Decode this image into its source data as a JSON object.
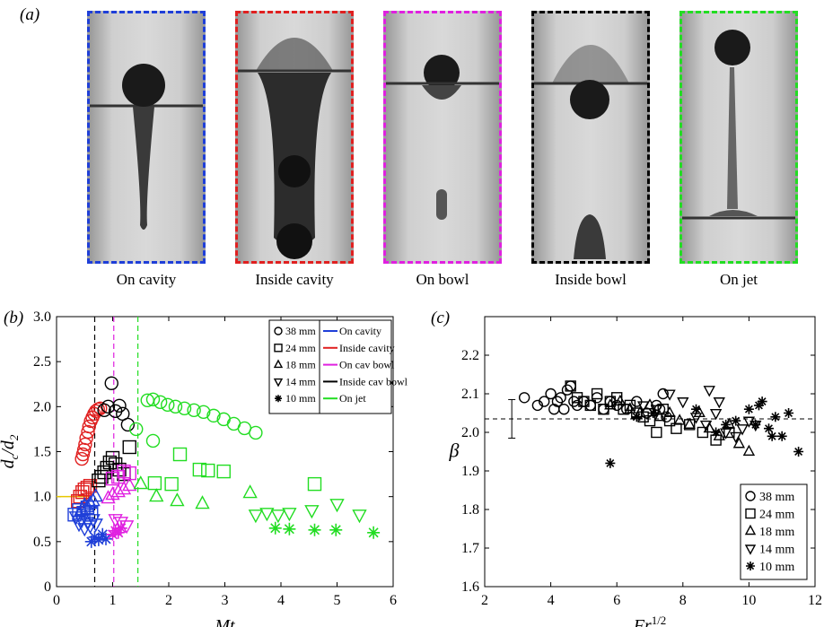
{
  "figure_labels": {
    "a": "(a)",
    "b": "(b)",
    "c": "(c)"
  },
  "photos": [
    {
      "label": "On cavity",
      "color": "#1f3fd8"
    },
    {
      "label": "Inside cavity",
      "color": "#e02020"
    },
    {
      "label": "On bowl",
      "color": "#e020e0"
    },
    {
      "label": "Inside bowl",
      "color": "#000000"
    },
    {
      "label": "On jet",
      "color": "#22dd22"
    }
  ],
  "chart_data": [
    {
      "id": "b",
      "type": "scatter",
      "xlabel": "Mt",
      "ylabel": "d_c/d_2",
      "xlim": [
        0,
        6
      ],
      "ylim": [
        0,
        3
      ],
      "xticks": [
        "0",
        "1",
        "2",
        "3",
        "4",
        "5",
        "6"
      ],
      "yticks": [
        "0",
        "0.5",
        "1.0",
        "1.5",
        "2.0",
        "2.5",
        "3.0"
      ],
      "vlines": [
        {
          "x": 0.68,
          "color": "#000000"
        },
        {
          "x": 1.02,
          "color": "#e020e0"
        },
        {
          "x": 1.45,
          "color": "#22dd22"
        }
      ],
      "hline": {
        "x0": 0.0,
        "x1": 0.6,
        "y": 1.0,
        "color": "#e8c800"
      },
      "legend": {
        "position": "top-right",
        "sizes": [
          {
            "marker": "circle",
            "label": "38 mm"
          },
          {
            "marker": "square",
            "label": "24 mm"
          },
          {
            "marker": "triangle-up",
            "label": "18 mm"
          },
          {
            "marker": "triangle-down",
            "label": "14 mm"
          },
          {
            "marker": "star",
            "label": "10 mm"
          }
        ],
        "regimes": [
          {
            "label": "On cavity",
            "color": "#1f3fd8"
          },
          {
            "label": "Inside cavity",
            "color": "#e02020"
          },
          {
            "label": "On cav bowl",
            "color": "#e020e0"
          },
          {
            "label": "Inside cav bowl",
            "color": "#000000"
          },
          {
            "label": "On jet",
            "color": "#22dd22"
          }
        ]
      },
      "series": [
        {
          "marker": "circle",
          "color": "#e02020",
          "x": [
            0.45,
            0.47,
            0.49,
            0.51,
            0.53,
            0.56,
            0.58,
            0.61,
            0.64,
            0.67,
            0.7,
            0.74,
            0.78
          ],
          "y": [
            1.42,
            1.47,
            1.52,
            1.58,
            1.65,
            1.72,
            1.78,
            1.84,
            1.88,
            1.92,
            1.95,
            1.97,
            1.98
          ]
        },
        {
          "marker": "circle",
          "color": "#000000",
          "x": [
            0.85,
            0.92,
            0.98,
            1.05,
            1.12,
            1.18,
            1.27
          ],
          "y": [
            1.96,
            2.0,
            2.26,
            1.95,
            2.01,
            1.92,
            1.8
          ]
        },
        {
          "marker": "circle",
          "color": "#22dd22",
          "x": [
            1.62,
            1.72,
            1.85,
            1.98,
            2.12,
            2.28,
            2.45,
            2.62,
            2.8,
            2.98,
            3.16,
            3.35,
            3.55,
            1.42,
            1.72
          ],
          "y": [
            2.07,
            2.08,
            2.05,
            2.02,
            2.0,
            1.98,
            1.96,
            1.94,
            1.9,
            1.86,
            1.81,
            1.76,
            1.71,
            1.75,
            1.62
          ]
        },
        {
          "marker": "square",
          "color": "#e02020",
          "x": [
            0.38,
            0.42,
            0.46,
            0.5,
            0.55,
            0.6
          ],
          "y": [
            0.95,
            1.0,
            1.05,
            1.08,
            1.1,
            1.12
          ]
        },
        {
          "marker": "square",
          "color": "#000000",
          "x": [
            0.75,
            0.8,
            0.85,
            0.9,
            0.95,
            1.0,
            1.05,
            1.12,
            1.2,
            1.3
          ],
          "y": [
            1.18,
            1.22,
            1.27,
            1.32,
            1.38,
            1.43,
            1.36,
            1.3,
            1.25,
            1.55
          ]
        },
        {
          "marker": "square",
          "color": "#e020e0",
          "x": [
            1.0,
            1.1,
            1.2,
            1.3
          ],
          "y": [
            1.2,
            1.22,
            1.28,
            1.26
          ]
        },
        {
          "marker": "square",
          "color": "#22dd22",
          "x": [
            1.75,
            2.05,
            2.2,
            2.55,
            2.7,
            2.98,
            4.6
          ],
          "y": [
            1.15,
            1.14,
            1.47,
            1.3,
            1.29,
            1.28,
            1.14
          ]
        },
        {
          "marker": "square",
          "color": "#1f3fd8",
          "x": [
            0.32,
            0.4,
            0.48,
            0.55,
            0.62
          ],
          "y": [
            0.8,
            0.85,
            0.82,
            0.88,
            0.82
          ]
        },
        {
          "marker": "triangle-up",
          "color": "#1f3fd8",
          "x": [
            0.4,
            0.45,
            0.5,
            0.55,
            0.6,
            0.65,
            0.7
          ],
          "y": [
            0.8,
            0.85,
            0.9,
            0.88,
            0.92,
            0.95,
            1.0
          ]
        },
        {
          "marker": "triangle-up",
          "color": "#e020e0",
          "x": [
            0.92,
            1.0,
            1.1,
            1.2,
            1.3
          ],
          "y": [
            0.98,
            1.02,
            1.05,
            1.08,
            1.12
          ]
        },
        {
          "marker": "triangle-up",
          "color": "#22dd22",
          "x": [
            1.5,
            1.78,
            2.15,
            2.6,
            3.45
          ],
          "y": [
            1.14,
            1.0,
            0.95,
            0.92,
            1.04
          ]
        },
        {
          "marker": "triangle-down",
          "color": "#1f3fd8",
          "x": [
            0.35,
            0.4,
            0.45,
            0.5,
            0.55,
            0.6,
            0.65,
            0.7
          ],
          "y": [
            0.78,
            0.7,
            0.74,
            0.65,
            0.72,
            0.68,
            0.75,
            0.7
          ]
        },
        {
          "marker": "triangle-down",
          "color": "#e020e0",
          "x": [
            1.05,
            1.15,
            1.25
          ],
          "y": [
            0.75,
            0.72,
            0.68
          ]
        },
        {
          "marker": "triangle-down",
          "color": "#22dd22",
          "x": [
            3.55,
            3.75,
            3.95,
            4.15,
            4.55,
            5.0,
            5.4
          ],
          "y": [
            0.8,
            0.82,
            0.8,
            0.82,
            0.85,
            0.92,
            0.8
          ]
        },
        {
          "marker": "star",
          "color": "#1f3fd8",
          "x": [
            0.62,
            0.68,
            0.75,
            0.82,
            0.88
          ],
          "y": [
            0.5,
            0.55,
            0.52,
            0.58,
            0.53
          ]
        },
        {
          "marker": "star",
          "color": "#e020e0",
          "x": [
            1.0,
            1.05,
            1.1,
            1.15
          ],
          "y": [
            0.58,
            0.62,
            0.6,
            0.65
          ]
        },
        {
          "marker": "star",
          "color": "#22dd22",
          "x": [
            3.9,
            4.15,
            4.6,
            4.98,
            5.65
          ],
          "y": [
            0.65,
            0.64,
            0.63,
            0.63,
            0.6
          ]
        }
      ]
    },
    {
      "id": "c",
      "type": "scatter",
      "xlabel": "Fr^1/2",
      "ylabel": "β",
      "xlim": [
        2,
        12
      ],
      "ylim": [
        1.6,
        2.3
      ],
      "xticks": [
        "2",
        "4",
        "6",
        "8",
        "10",
        "12"
      ],
      "yticks": [
        "1.6",
        "1.7",
        "1.8",
        "1.9",
        "2.0",
        "2.1",
        "2.2"
      ],
      "mean_line": 2.035,
      "error_bar": {
        "x": 2.82,
        "y": 2.035,
        "ylow": 1.985,
        "yhigh": 2.085
      },
      "legend": {
        "position": "bottom-right",
        "entries": [
          {
            "marker": "circle",
            "label": "38 mm"
          },
          {
            "marker": "square",
            "label": "24 mm"
          },
          {
            "marker": "triangle-up",
            "label": "18 mm"
          },
          {
            "marker": "triangle-down",
            "label": "14 mm"
          },
          {
            "marker": "star",
            "label": "10 mm"
          }
        ]
      },
      "series": [
        {
          "marker": "circle",
          "x": [
            3.2,
            3.6,
            3.8,
            4.0,
            4.1,
            4.2,
            4.3,
            4.4,
            4.5,
            4.6,
            4.7,
            4.8,
            5.0,
            5.2,
            5.4,
            5.6,
            5.8,
            6.0,
            6.3,
            6.6,
            6.9,
            7.2,
            7.3,
            7.4,
            7.5
          ],
          "y": [
            2.09,
            2.07,
            2.08,
            2.1,
            2.06,
            2.08,
            2.09,
            2.06,
            2.11,
            2.12,
            2.08,
            2.07,
            2.08,
            2.07,
            2.09,
            2.06,
            2.08,
            2.07,
            2.06,
            2.08,
            2.05,
            2.07,
            2.06,
            2.1,
            2.04
          ]
        },
        {
          "marker": "square",
          "x": [
            4.6,
            4.8,
            5.0,
            5.2,
            5.4,
            5.6,
            5.8,
            6.0,
            6.2,
            6.4,
            6.6,
            6.8,
            7.0,
            7.2,
            7.4,
            7.6,
            7.8,
            8.2,
            8.6,
            9.0,
            9.4
          ],
          "y": [
            2.12,
            2.09,
            2.08,
            2.07,
            2.1,
            2.06,
            2.08,
            2.09,
            2.06,
            2.07,
            2.05,
            2.04,
            2.03,
            2.0,
            2.06,
            2.03,
            2.01,
            2.02,
            2.0,
            1.98,
            2.0
          ]
        },
        {
          "marker": "triangle-up",
          "x": [
            5.8,
            6.1,
            6.4,
            6.7,
            7.0,
            7.3,
            7.6,
            7.9,
            8.2,
            8.5,
            8.8,
            9.1,
            9.4,
            9.7,
            10.0
          ],
          "y": [
            2.07,
            2.08,
            2.06,
            2.05,
            2.07,
            2.04,
            2.05,
            2.03,
            2.02,
            2.05,
            2.01,
            1.99,
            2.02,
            1.97,
            1.95
          ]
        },
        {
          "marker": "triangle-down",
          "x": [
            6.8,
            7.2,
            7.6,
            8.0,
            8.4,
            8.7,
            9.0,
            9.3,
            9.6,
            9.8,
            10.0,
            10.2,
            8.8,
            9.1
          ],
          "y": [
            2.07,
            2.06,
            2.1,
            2.08,
            2.04,
            2.02,
            2.05,
            2.0,
            1.99,
            2.01,
            2.03,
            2.02,
            2.11,
            2.08
          ]
        },
        {
          "marker": "star",
          "x": [
            5.8,
            6.6,
            7.1,
            8.4,
            9.0,
            9.3,
            9.6,
            10.0,
            10.2,
            10.4,
            10.6,
            10.8,
            11.0,
            11.2,
            11.5,
            10.3,
            10.7
          ],
          "y": [
            1.92,
            2.04,
            2.05,
            2.06,
            2.0,
            2.02,
            2.03,
            2.06,
            2.02,
            2.08,
            2.01,
            2.04,
            1.99,
            2.05,
            1.95,
            2.07,
            1.99
          ]
        }
      ]
    }
  ]
}
